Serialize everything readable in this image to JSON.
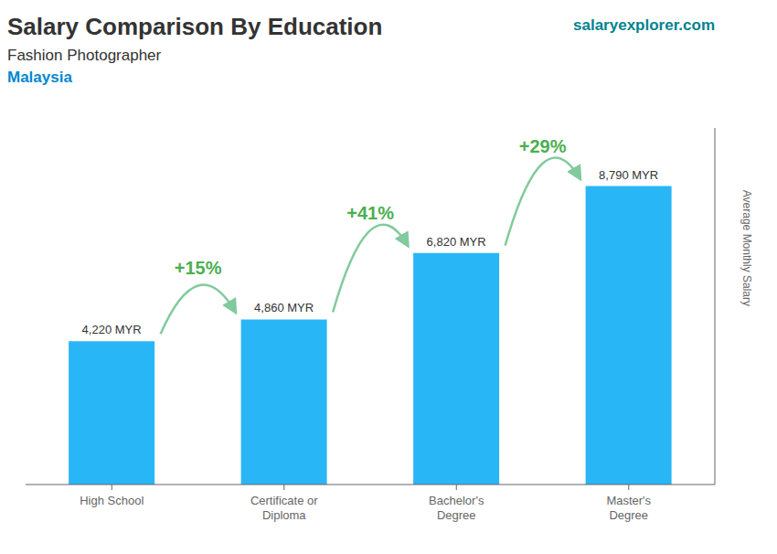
{
  "chart_data": {
    "type": "bar",
    "title": "Salary Comparison By Education",
    "subtitle": "Fashion Photographer",
    "ylabel": "Average Monthly Salary",
    "categories": [
      "High School",
      "Certificate or\nDiploma",
      "Bachelor's\nDegree",
      "Master's\nDegree"
    ],
    "values": [
      4220,
      4860,
      6820,
      8790
    ],
    "value_labels": [
      "4,220 MYR",
      "4,860 MYR",
      "6,820 MYR",
      "8,790 MYR"
    ],
    "data_labels": true,
    "color": "#29b6f6",
    "ylim": [
      0,
      10500
    ],
    "grid": false,
    "tick_labels": false,
    "annotations": [
      {
        "text": "Malaysia"
      },
      {
        "text": "salaryexplorer.com"
      },
      {
        "text": "+15%",
        "from": "High School",
        "to": "Certificate or\nDiploma"
      },
      {
        "text": "+41%",
        "from": "Certificate or\nDiploma",
        "to": "Bachelor's\nDegree"
      },
      {
        "text": "+29%",
        "from": "Bachelor's\nDegree",
        "to": "Master's\nDegree"
      }
    ]
  }
}
